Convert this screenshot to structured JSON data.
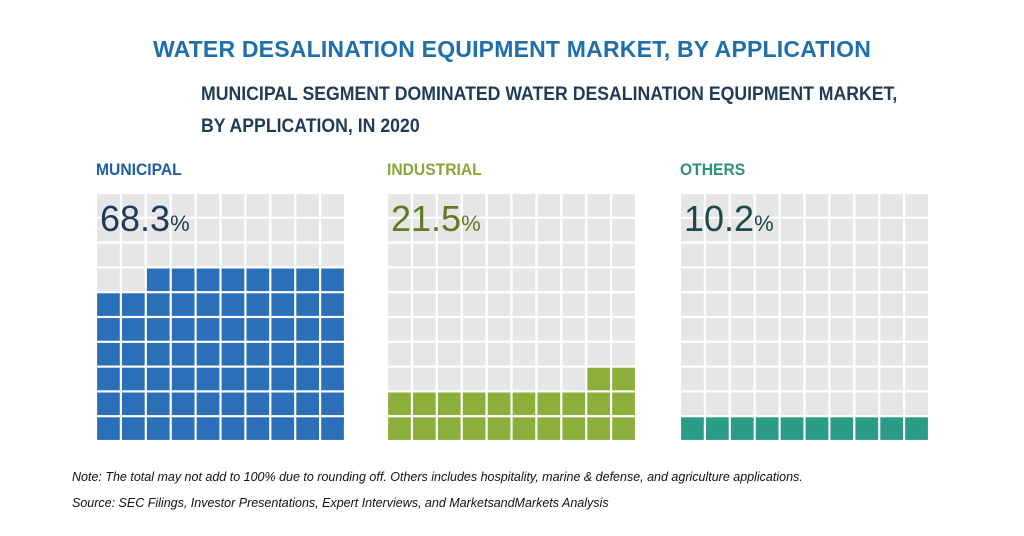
{
  "title": "WATER DESALINATION EQUIPMENT MARKET, BY APPLICATION",
  "subtitle_line1": "MUNICIPAL SEGMENT DOMINATED WATER DESALINATION EQUIPMENT MARKET,",
  "subtitle_line2": "BY APPLICATION, IN 2020",
  "chart_data": {
    "type": "waffle",
    "unit": "%",
    "categories": [
      "MUNICIPAL",
      "INDUSTRIAL",
      "OTHERS"
    ],
    "values": [
      68.3,
      21.5,
      10.2
    ],
    "display_values": [
      "68.3",
      "21.5",
      "10.2"
    ],
    "colors": [
      "#2a6fb7",
      "#8cae3a",
      "#2a9b85"
    ],
    "label_colors": [
      "#1f5f9e",
      "#86a838",
      "#2a9478"
    ],
    "pct_colors": [
      "#1f3b57",
      "#5f7a28",
      "#1d4a44"
    ],
    "empty_color": "#e6e6e6"
  },
  "note": "Note: The total may not add to 100% due to rounding off. Others includes hospitality, marine & defense, and agriculture applications.",
  "source": "Source: SEC Filings, Investor Presentations, Expert Interviews, and MarketsandMarkets Analysis"
}
